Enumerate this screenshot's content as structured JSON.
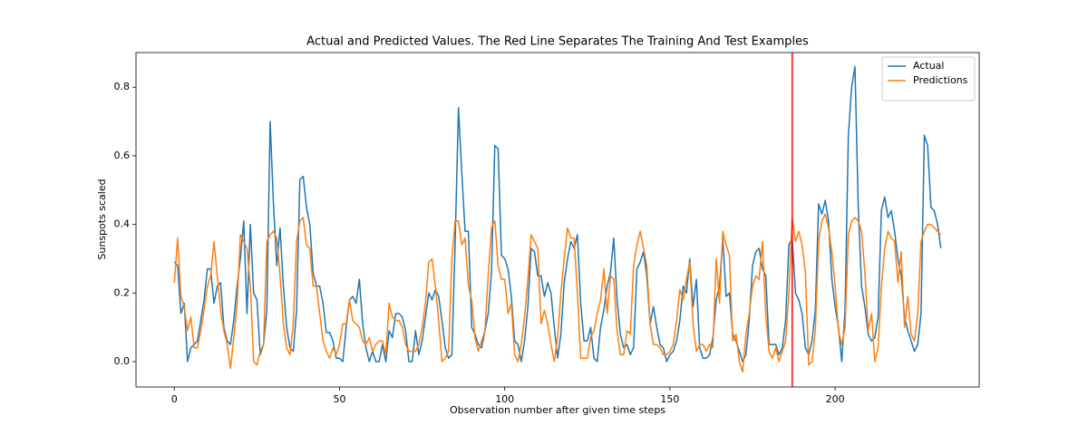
{
  "chart_data": {
    "type": "line",
    "title": "Actual and Predicted Values. The Red Line Separates The Training And Test Examples",
    "xlabel": "Observation number after given time steps",
    "ylabel": "Sunspots scaled",
    "x": [
      0,
      1,
      2,
      3,
      4,
      5,
      6,
      7,
      8,
      9,
      10,
      11,
      12,
      13,
      14,
      15,
      16,
      17,
      18,
      19,
      20,
      21,
      22,
      23,
      24,
      25,
      26,
      27,
      28,
      29,
      30,
      31,
      32,
      33,
      34,
      35,
      36,
      37,
      38,
      39,
      40,
      41,
      42,
      43,
      44,
      45,
      46,
      47,
      48,
      49,
      50,
      51,
      52,
      53,
      54,
      55,
      56,
      57,
      58,
      59,
      60,
      61,
      62,
      63,
      64,
      65,
      66,
      67,
      68,
      69,
      70,
      71,
      72,
      73,
      74,
      75,
      76,
      77,
      78,
      79,
      80,
      81,
      82,
      83,
      84,
      85,
      86,
      87,
      88,
      89,
      90,
      91,
      92,
      93,
      94,
      95,
      96,
      97,
      98,
      99,
      100,
      101,
      102,
      103,
      104,
      105,
      106,
      107,
      108,
      109,
      110,
      111,
      112,
      113,
      114,
      115,
      116,
      117,
      118,
      119,
      120,
      121,
      122,
      123,
      124,
      125,
      126,
      127,
      128,
      129,
      130,
      131,
      132,
      133,
      134,
      135,
      136,
      137,
      138,
      139,
      140,
      141,
      142,
      143,
      144,
      145,
      146,
      147,
      148,
      149,
      150,
      151,
      152,
      153,
      154,
      155,
      156,
      157,
      158,
      159,
      160,
      161,
      162,
      163,
      164,
      165,
      166,
      167,
      168,
      169,
      170,
      171,
      172,
      173,
      174,
      175,
      176,
      177,
      178,
      179,
      180,
      181,
      182,
      183,
      184,
      185,
      186,
      187,
      188,
      189,
      190,
      191,
      192,
      193,
      194,
      195,
      196,
      197,
      198,
      199,
      200,
      201,
      202,
      203,
      204,
      205,
      206,
      207,
      208,
      209,
      210,
      211,
      212,
      213,
      214,
      215,
      216,
      217,
      218,
      219,
      220,
      221,
      222,
      223,
      224,
      225,
      226,
      227,
      228,
      229,
      230,
      231,
      232
    ],
    "series": [
      {
        "name": "Actual",
        "color": "#1f77b4",
        "values": [
          0.29,
          0.28,
          0.14,
          0.17,
          0,
          0.04,
          0.05,
          0.06,
          0.12,
          0.18,
          0.27,
          0.27,
          0.17,
          0.22,
          0.23,
          0.1,
          0.06,
          0.05,
          0.12,
          0.22,
          0.3,
          0.41,
          0.14,
          0.4,
          0.2,
          0.18,
          0.02,
          0.05,
          0.15,
          0.7,
          0.46,
          0.28,
          0.39,
          0.22,
          0.1,
          0.04,
          0.03,
          0.15,
          0.53,
          0.54,
          0.45,
          0.4,
          0.26,
          0.22,
          0.22,
          0.17,
          0.085,
          0.085,
          0.06,
          0.01,
          0.01,
          0,
          0.1,
          0.18,
          0.19,
          0.17,
          0.24,
          0.11,
          0.04,
          0,
          0.03,
          0,
          0,
          0.05,
          0,
          0.09,
          0.07,
          0.14,
          0.14,
          0.13,
          0.09,
          0,
          0,
          0.09,
          0.02,
          0.06,
          0.13,
          0.2,
          0.18,
          0.21,
          0.19,
          0.12,
          0.04,
          0.01,
          0.02,
          0.35,
          0.74,
          0.55,
          0.38,
          0.38,
          0.1,
          0.08,
          0.05,
          0.04,
          0.09,
          0.14,
          0.26,
          0.63,
          0.62,
          0.31,
          0.3,
          0.27,
          0.19,
          0.06,
          0.05,
          0,
          0.06,
          0.16,
          0.33,
          0.32,
          0.25,
          0.25,
          0.19,
          0.23,
          0.2,
          0.1,
          0.01,
          0.08,
          0.23,
          0.3,
          0.35,
          0.33,
          0.37,
          0.17,
          0.06,
          0.06,
          0.1,
          0.01,
          0,
          0.1,
          0.15,
          0.22,
          0.26,
          0.36,
          0.18,
          0.08,
          0.04,
          0.05,
          0.02,
          0.04,
          0.27,
          0.29,
          0.32,
          0.25,
          0.11,
          0.16,
          0.1,
          0.05,
          0.04,
          0,
          0.02,
          0.03,
          0.06,
          0.12,
          0.22,
          0.2,
          0.3,
          0.16,
          0.24,
          0.04,
          0.01,
          0.01,
          0.02,
          0.07,
          0.18,
          0.22,
          0.36,
          0.19,
          0.2,
          0.08,
          0.06,
          0.03,
          0,
          0.02,
          0.12,
          0.28,
          0.32,
          0.33,
          0.27,
          0.25,
          0.05,
          0.05,
          0.05,
          0.02,
          0.04,
          0.12,
          0.34,
          0.36,
          0.2,
          0.18,
          0.14,
          0.04,
          0.02,
          0.06,
          0.15,
          0.46,
          0.43,
          0.47,
          0.41,
          0.24,
          0.16,
          0.1,
          0,
          0.15,
          0.66,
          0.8,
          0.86,
          0.45,
          0.22,
          0.16,
          0.08,
          0.06,
          0.07,
          0.13,
          0.44,
          0.48,
          0.42,
          0.44,
          0.38,
          0.3,
          0.25,
          0.13,
          0.09,
          0.06,
          0.03,
          0.05,
          0.14,
          0.66,
          0.63,
          0.45,
          0.44,
          0.4,
          0.33
        ]
      },
      {
        "name": "Predictions",
        "color": "#ff7f0e",
        "values": [
          0.23,
          0.36,
          0.19,
          0.16,
          0.09,
          0.13,
          0.04,
          0.04,
          0.09,
          0.15,
          0.22,
          0.25,
          0.35,
          0.25,
          0.15,
          0.09,
          0.05,
          -0.02,
          0.07,
          0.17,
          0.37,
          0.35,
          0.33,
          0.22,
          0,
          -0.01,
          0.03,
          0.05,
          0.35,
          0.37,
          0.38,
          0.36,
          0.25,
          0.11,
          0.04,
          0.02,
          0.11,
          0.35,
          0.41,
          0.42,
          0.34,
          0.33,
          0.22,
          0.22,
          0.14,
          0.06,
          0.03,
          0.01,
          0.04,
          0.02,
          0.05,
          0.11,
          0.11,
          0.18,
          0.12,
          0.11,
          0.1,
          0.06,
          0.05,
          0.07,
          0.03,
          0.05,
          0.06,
          0.06,
          0.02,
          0.17,
          0.13,
          0.12,
          0.12,
          0.1,
          0.05,
          0.03,
          0.03,
          0.03,
          0.05,
          0.1,
          0.17,
          0.29,
          0.3,
          0.22,
          0.12,
          0,
          0.01,
          0.03,
          0.3,
          0.41,
          0.41,
          0.34,
          0.36,
          0.22,
          0.18,
          0.07,
          0.03,
          0.06,
          0.09,
          0.25,
          0.39,
          0.41,
          0.28,
          0.24,
          0.24,
          0.14,
          0.17,
          0.02,
          0,
          0.05,
          0.13,
          0.24,
          0.37,
          0.35,
          0.33,
          0.11,
          0.15,
          0.11,
          0.05,
          0,
          0.07,
          0.2,
          0.3,
          0.39,
          0.36,
          0.36,
          0.2,
          0.01,
          0.01,
          0.01,
          0.07,
          0.09,
          0.14,
          0.18,
          0.27,
          0.14,
          0.25,
          0.24,
          0.09,
          0.02,
          0.02,
          0.09,
          0.08,
          0.28,
          0.34,
          0.38,
          0.33,
          0.28,
          0.11,
          0.05,
          0.05,
          0.04,
          0.02,
          0.02,
          0.03,
          0.05,
          0.12,
          0.21,
          0.18,
          0.24,
          0.29,
          0.11,
          0.03,
          0.05,
          0.05,
          0.03,
          0.05,
          0.04,
          0.3,
          0.17,
          0.38,
          0.34,
          0.31,
          0.06,
          0.08,
          0,
          -0.03,
          0.08,
          0.14,
          0.22,
          0.25,
          0.24,
          0.35,
          0.14,
          0.03,
          0.01,
          0.04,
          0,
          0.03,
          0.06,
          0.2,
          0.42,
          0.35,
          0.38,
          0.34,
          0.26,
          -0.01,
          0,
          0.09,
          0.35,
          0.41,
          0.43,
          0.39,
          0.32,
          0.22,
          0.09,
          0.05,
          0.1,
          0.37,
          0.41,
          0.42,
          0.41,
          0.38,
          0.26,
          0.09,
          0.14,
          0,
          0.04,
          0.22,
          0.33,
          0.38,
          0.36,
          0.35,
          0.23,
          0.32,
          0.1,
          0.19,
          0.08,
          0.06,
          0.14,
          0.35,
          0.38,
          0.4,
          0.4,
          0.39,
          0.38,
          0.37
        ]
      }
    ],
    "vline": {
      "x": 187,
      "color": "red"
    },
    "xlim": [
      -11.6,
      243.6
    ],
    "xticks": [
      0,
      50,
      100,
      150,
      200
    ],
    "ylim": [
      -0.074,
      0.901
    ],
    "yticks": [
      {
        "value": 0,
        "label": "0.0"
      },
      {
        "value": 0.2,
        "label": "0.2"
      },
      {
        "value": 0.4,
        "label": "0.4"
      },
      {
        "value": 0.6,
        "label": "0.6"
      },
      {
        "value": 0.8,
        "label": "0.8"
      }
    ],
    "grid": false,
    "legend": "upper right"
  }
}
